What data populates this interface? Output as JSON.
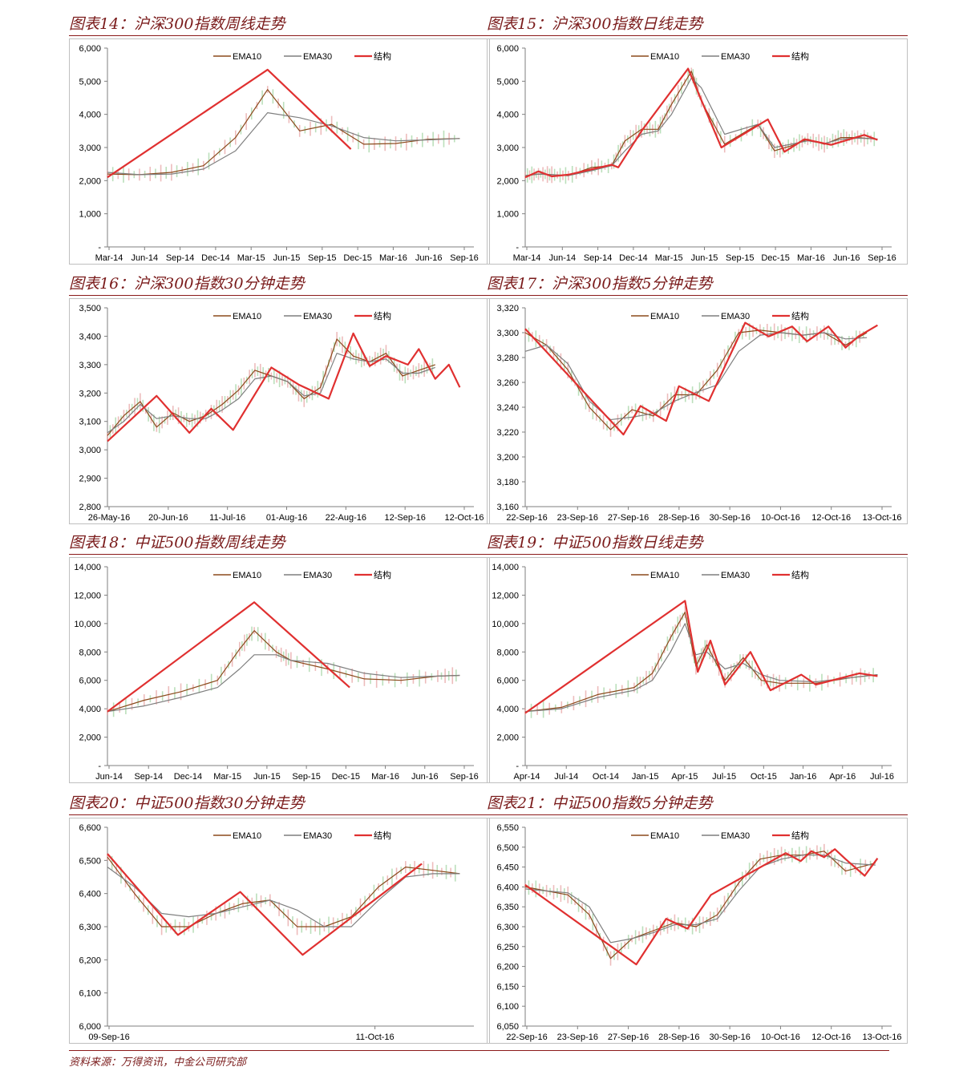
{
  "source": "资料来源：万得资讯，中金公司研究部",
  "legend": {
    "ema10": "EMA10",
    "ema30": "EMA30",
    "structure": "结构"
  },
  "colors": {
    "price": "#c9c9c9",
    "ema10": "#8b4a1c",
    "ema30": "#7f7f7f",
    "structure": "#e03030",
    "axis": "#7f7f7f",
    "title": "#7a1b1b"
  },
  "chart_data": [
    {
      "type": "line",
      "title": "图表14：沪深300指数周线走势",
      "ylim": [
        0,
        6000
      ],
      "yticks": [
        0,
        1000,
        2000,
        3000,
        4000,
        5000,
        6000
      ],
      "ytick_labels": [
        "-",
        "1,000",
        "2,000",
        "3,000",
        "4,000",
        "5,000",
        "6,000"
      ],
      "xtick_labels": [
        "Mar-14",
        "Jun-14",
        "Sep-14",
        "Dec-14",
        "Mar-15",
        "Jun-15",
        "Sep-15",
        "Dec-15",
        "Mar-16",
        "Jun-16",
        "Sep-16"
      ],
      "x": [
        0,
        1,
        2,
        3,
        4,
        5,
        6,
        7,
        8,
        9,
        10,
        11
      ],
      "series": [
        {
          "name": "EMA10",
          "values": [
            2200,
            2180,
            2250,
            2450,
            3300,
            4750,
            3500,
            3700,
            3100,
            3120,
            3250,
            3270
          ]
        },
        {
          "name": "EMA30",
          "values": [
            2250,
            2180,
            2200,
            2350,
            2900,
            4050,
            3900,
            3650,
            3300,
            3200,
            3230,
            3270
          ]
        },
        {
          "name": "结构",
          "x": [
            0,
            5,
            7.6
          ],
          "values": [
            2100,
            5350,
            2950
          ]
        }
      ]
    },
    {
      "type": "line",
      "title": "图表15：沪深300指数日线走势",
      "ylim": [
        0,
        6000
      ],
      "yticks": [
        0,
        1000,
        2000,
        3000,
        4000,
        5000,
        6000
      ],
      "ytick_labels": [
        "-",
        "1,000",
        "2,000",
        "3,000",
        "4,000",
        "5,000",
        "6,000"
      ],
      "xtick_labels": [
        "Mar-14",
        "Jun-14",
        "Sep-14",
        "Dec-14",
        "Mar-15",
        "Jun-15",
        "Sep-15",
        "Dec-15",
        "Mar-16",
        "Jun-16",
        "Sep-16"
      ],
      "x": [
        0,
        0.4,
        0.8,
        1.3,
        2,
        2.6,
        3,
        3.5,
        4,
        4.4,
        5,
        5.3,
        6,
        7,
        7.5,
        8,
        8.5,
        9,
        9.5,
        10,
        10.6
      ],
      "series": [
        {
          "name": "EMA10",
          "values": [
            2150,
            2200,
            2180,
            2150,
            2400,
            2450,
            3200,
            3550,
            3550,
            4300,
            5300,
            4400,
            3100,
            3700,
            2900,
            3050,
            3250,
            3100,
            3300,
            3300,
            3250
          ]
        },
        {
          "name": "EMA30",
          "values": [
            2150,
            2200,
            2180,
            2150,
            2300,
            2450,
            2900,
            3400,
            3500,
            4000,
            5100,
            4800,
            3400,
            3700,
            3000,
            3100,
            3200,
            3120,
            3250,
            3280,
            3260
          ]
        },
        {
          "name": "结构",
          "x": [
            0,
            0.4,
            0.8,
            1.3,
            2.6,
            2.8,
            3.5,
            4.9,
            5.9,
            7.3,
            7.8,
            8.4,
            9.2,
            10.2,
            10.6
          ],
          "values": [
            2100,
            2280,
            2130,
            2180,
            2480,
            2400,
            3500,
            5380,
            3000,
            3850,
            2870,
            3250,
            3080,
            3380,
            3230
          ]
        }
      ]
    },
    {
      "type": "line",
      "title": "图表16：沪深300指数30分钟走势",
      "ylim": [
        2800,
        3500
      ],
      "yticks": [
        2800,
        2900,
        3000,
        3100,
        3200,
        3300,
        3400,
        3500
      ],
      "ytick_labels": [
        "2,800",
        "2,900",
        "3,000",
        "3,100",
        "3,200",
        "3,300",
        "3,400",
        "3,500"
      ],
      "xtick_labels": [
        "26-May-16",
        "20-Jun-16",
        "11-Jul-16",
        "01-Aug-16",
        "22-Aug-16",
        "12-Sep-16",
        "12-Oct-16"
      ],
      "x": [
        0,
        0.3,
        0.6,
        0.9,
        1.2,
        1.5,
        1.8,
        2.1,
        2.4,
        2.7,
        3,
        3.3,
        3.6,
        3.9,
        4.2,
        4.5,
        4.8,
        5.1,
        5.4,
        5.7,
        6
      ],
      "series": [
        {
          "name": "EMA10",
          "values": [
            3050,
            3120,
            3170,
            3080,
            3130,
            3100,
            3120,
            3160,
            3210,
            3280,
            3260,
            3240,
            3180,
            3220,
            3390,
            3330,
            3310,
            3340,
            3260,
            3280,
            3300
          ]
        },
        {
          "name": "EMA30",
          "values": [
            3060,
            3100,
            3160,
            3110,
            3120,
            3110,
            3110,
            3140,
            3180,
            3250,
            3260,
            3240,
            3190,
            3200,
            3340,
            3320,
            3310,
            3320,
            3270,
            3270,
            3290
          ]
        },
        {
          "name": "结构",
          "x": [
            0,
            0.9,
            1.5,
            1.9,
            2.3,
            3.0,
            3.5,
            4.05,
            4.5,
            4.8,
            5.1,
            5.5,
            5.7,
            6.0,
            6.25,
            6.45
          ],
          "values": [
            3030,
            3190,
            3060,
            3145,
            3070,
            3290,
            3230,
            3180,
            3410,
            3295,
            3330,
            3300,
            3355,
            3250,
            3300,
            3220
          ]
        }
      ]
    },
    {
      "type": "line",
      "title": "图表17：沪深300指数5分钟走势",
      "ylim": [
        3160,
        3320
      ],
      "yticks": [
        3160,
        3180,
        3200,
        3220,
        3240,
        3260,
        3280,
        3300,
        3320
      ],
      "ytick_labels": [
        "3,160",
        "3,180",
        "3,200",
        "3,220",
        "3,240",
        "3,260",
        "3,280",
        "3,300",
        "3,320"
      ],
      "xtick_labels": [
        "22-Sep-16",
        "23-Sep-16",
        "27-Sep-16",
        "28-Sep-16",
        "30-Sep-16",
        "10-Oct-16",
        "12-Oct-16",
        "13-Oct-16"
      ],
      "x": [
        0,
        0.5,
        1,
        1.5,
        2,
        2.5,
        3,
        3.5,
        4,
        4.5,
        5,
        5.5,
        6,
        6.5,
        7,
        7.5,
        8
      ],
      "series": [
        {
          "name": "EMA10",
          "values": [
            3300,
            3290,
            3270,
            3240,
            3222,
            3238,
            3233,
            3250,
            3250,
            3270,
            3300,
            3302,
            3300,
            3298,
            3300,
            3290,
            3300
          ]
        },
        {
          "name": "EMA30",
          "values": [
            3285,
            3290,
            3275,
            3245,
            3230,
            3232,
            3235,
            3245,
            3252,
            3258,
            3285,
            3298,
            3300,
            3298,
            3300,
            3295,
            3296
          ]
        },
        {
          "name": "结构",
          "x": [
            0,
            2.3,
            2.7,
            3.3,
            3.6,
            4.3,
            5.15,
            5.7,
            6.25,
            6.6,
            7.1,
            7.5,
            7.8,
            8.25
          ],
          "values": [
            3303,
            3218,
            3241,
            3229,
            3257,
            3245,
            3308,
            3297,
            3305,
            3293,
            3305,
            3288,
            3297,
            3306
          ]
        }
      ]
    },
    {
      "type": "line",
      "title": "图表18：中证500指数周线走势",
      "ylim": [
        0,
        14000
      ],
      "yticks": [
        0,
        2000,
        4000,
        6000,
        8000,
        10000,
        12000,
        14000
      ],
      "ytick_labels": [
        "-",
        "2,000",
        "4,000",
        "6,000",
        "8,000",
        "10,000",
        "12,000",
        "14,000"
      ],
      "xtick_labels": [
        "Jun-14",
        "Sep-14",
        "Dec-14",
        "Mar-15",
        "Jun-15",
        "Sep-15",
        "Dec-15",
        "Mar-16",
        "Jun-16",
        "Sep-16"
      ],
      "x": [
        0,
        1,
        2,
        3,
        3.6,
        4,
        4.6,
        5,
        6,
        7,
        8,
        9,
        9.6
      ],
      "series": [
        {
          "name": "EMA10",
          "values": [
            3800,
            4600,
            5200,
            6000,
            8200,
            9500,
            8000,
            7400,
            6800,
            6100,
            6000,
            6300,
            6350
          ]
        },
        {
          "name": "EMA30",
          "values": [
            3800,
            4200,
            4800,
            5500,
            6800,
            7800,
            7800,
            7400,
            7200,
            6500,
            6200,
            6300,
            6350
          ]
        },
        {
          "name": "结构",
          "x": [
            0,
            4,
            6.6
          ],
          "values": [
            3800,
            11500,
            5500
          ]
        }
      ]
    },
    {
      "type": "line",
      "title": "图表19：中证500指数日线走势",
      "ylim": [
        0,
        14000
      ],
      "yticks": [
        0,
        2000,
        4000,
        6000,
        8000,
        10000,
        12000,
        14000
      ],
      "ytick_labels": [
        "-",
        "2,000",
        "4,000",
        "6,000",
        "8,000",
        "10,000",
        "12,000",
        "14,000"
      ],
      "xtick_labels": [
        "Apr-14",
        "Jul-14",
        "Oct-14",
        "Jan-15",
        "Apr-15",
        "Jul-15",
        "Oct-15",
        "Jan-16",
        "Apr-16",
        "Jul-16"
      ],
      "x": [
        0,
        1,
        2,
        3,
        3.5,
        4,
        4.4,
        4.7,
        5,
        5.5,
        6,
        6.5,
        7,
        8,
        9,
        9.7
      ],
      "series": [
        {
          "name": "EMA10",
          "values": [
            3800,
            4100,
            5000,
            5500,
            6500,
            9000,
            10800,
            7000,
            8500,
            6000,
            7600,
            6000,
            5800,
            5800,
            6200,
            6400
          ]
        },
        {
          "name": "EMA30",
          "values": [
            3800,
            4000,
            4800,
            5300,
            6000,
            8000,
            10000,
            7800,
            8000,
            6800,
            7200,
            6400,
            6000,
            5900,
            6200,
            6400
          ]
        },
        {
          "name": "结构",
          "x": [
            0,
            4.4,
            4.75,
            5.1,
            5.5,
            6.2,
            6.75,
            7.6,
            8.0,
            9.2,
            9.7
          ],
          "values": [
            3700,
            11600,
            6600,
            8800,
            5700,
            8000,
            5300,
            6400,
            5700,
            6500,
            6300
          ]
        }
      ]
    },
    {
      "type": "line",
      "title": "图表20：中证500指数30分钟走势",
      "ylim": [
        6000,
        6600
      ],
      "yticks": [
        6000,
        6100,
        6200,
        6300,
        6400,
        6500,
        6600
      ],
      "ytick_labels": [
        "6,000",
        "6,100",
        "6,200",
        "6,300",
        "6,400",
        "6,500",
        "6,600"
      ],
      "xtick_labels": [
        "09-Sep-16",
        "11-Oct-16"
      ],
      "x": [
        0,
        0.1,
        0.2,
        0.3,
        0.4,
        0.5,
        0.6,
        0.7,
        0.8,
        0.9,
        1,
        1.1,
        1.2,
        1.3
      ],
      "series": [
        {
          "name": "EMA10",
          "values": [
            6510,
            6400,
            6300,
            6300,
            6340,
            6370,
            6380,
            6300,
            6300,
            6330,
            6420,
            6480,
            6470,
            6460
          ]
        },
        {
          "name": "EMA30",
          "values": [
            6480,
            6420,
            6340,
            6330,
            6340,
            6360,
            6380,
            6350,
            6300,
            6300,
            6380,
            6450,
            6460,
            6460
          ]
        },
        {
          "name": "结构",
          "x": [
            0,
            0.26,
            0.49,
            0.72,
            1.16
          ],
          "values": [
            6520,
            6275,
            6405,
            6215,
            6490
          ]
        }
      ]
    },
    {
      "type": "line",
      "title": "图表21：中证500指数5分钟走势",
      "ylim": [
        6050,
        6550
      ],
      "yticks": [
        6050,
        6100,
        6150,
        6200,
        6250,
        6300,
        6350,
        6400,
        6450,
        6500,
        6550
      ],
      "ytick_labels": [
        "6,050",
        "6,100",
        "6,150",
        "6,200",
        "6,250",
        "6,300",
        "6,350",
        "6,400",
        "6,450",
        "6,500",
        "6,550"
      ],
      "xtick_labels": [
        "22-Sep-16",
        "23-Sep-16",
        "27-Sep-16",
        "28-Sep-16",
        "30-Sep-16",
        "10-Oct-16",
        "12-Oct-16",
        "13-Oct-16"
      ],
      "x": [
        0,
        0.5,
        1,
        1.5,
        2,
        2.5,
        3,
        3.5,
        4,
        4.5,
        5,
        5.5,
        6,
        6.5,
        7,
        7.5,
        8.2
      ],
      "series": [
        {
          "name": "EMA10",
          "values": [
            6400,
            6390,
            6380,
            6330,
            6220,
            6270,
            6290,
            6310,
            6300,
            6330,
            6410,
            6470,
            6480,
            6480,
            6490,
            6440,
            6460
          ]
        },
        {
          "name": "EMA30",
          "values": [
            6395,
            6390,
            6385,
            6350,
            6260,
            6270,
            6285,
            6305,
            6305,
            6320,
            6390,
            6450,
            6470,
            6480,
            6480,
            6460,
            6455
          ]
        },
        {
          "name": "结构",
          "x": [
            0,
            2.6,
            3.3,
            3.8,
            4.35,
            6.1,
            6.45,
            6.7,
            7.0,
            7.25,
            7.5,
            7.95,
            8.25
          ],
          "values": [
            6405,
            6205,
            6320,
            6295,
            6380,
            6485,
            6465,
            6490,
            6475,
            6495,
            6470,
            6428,
            6472
          ]
        }
      ]
    }
  ]
}
